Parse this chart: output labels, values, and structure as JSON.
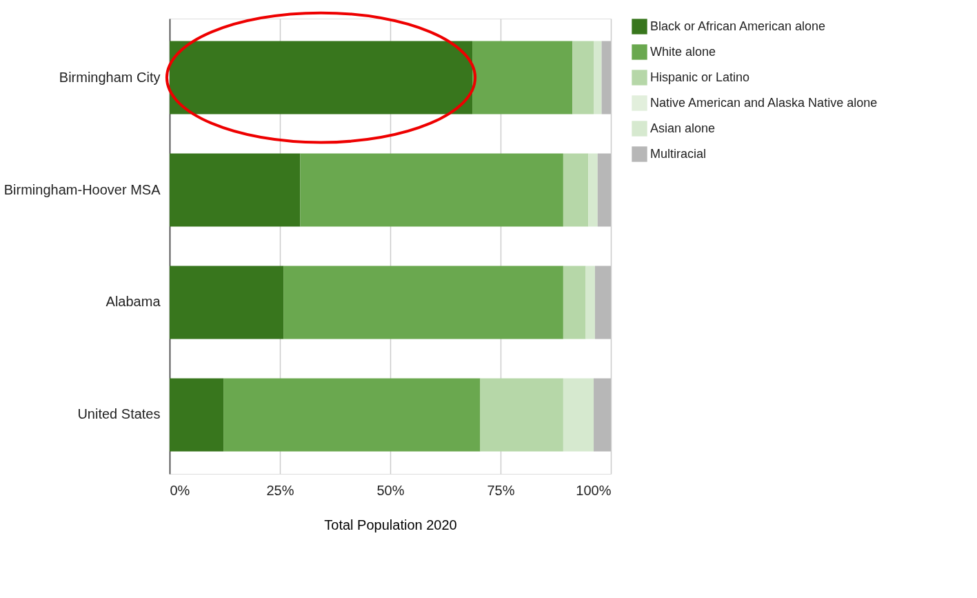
{
  "chart_data": {
    "type": "bar",
    "orientation": "horizontal",
    "stacked": true,
    "xlabel": "Total Population 2020",
    "categories": [
      "Birmingham City",
      "Birmingham-Hoover MSA",
      "Alabama",
      "United States"
    ],
    "series": [
      {
        "name": "Black or African American alone",
        "color": "#38761d",
        "values": [
          68.6,
          29.6,
          25.8,
          12.2
        ]
      },
      {
        "name": "White alone",
        "color": "#6aa84f",
        "values": [
          22.7,
          59.6,
          63.4,
          58.2
        ]
      },
      {
        "name": "Hispanic or Latino",
        "color": "#b6d7a8",
        "values": [
          4.8,
          5.7,
          5.1,
          18.8
        ]
      },
      {
        "name": "Native American and Alaska Native alone",
        "color": "#e2efdc",
        "values": [
          null,
          null,
          null,
          null
        ]
      },
      {
        "name": "Asian alone",
        "color": "#d6e9cf",
        "values": [
          1.8,
          2.1,
          2.1,
          6.9
        ]
      },
      {
        "name": "Multiracial",
        "color": "#b7b7b7",
        "values": [
          2.1,
          3.0,
          3.6,
          3.9
        ]
      }
    ],
    "xlim": [
      0,
      100
    ],
    "xticks": [
      {
        "value": 0,
        "label": "0%"
      },
      {
        "value": 25,
        "label": "25%"
      },
      {
        "value": 50,
        "label": "50%"
      },
      {
        "value": 75,
        "label": "75%"
      },
      {
        "value": 100,
        "label": "100%"
      }
    ],
    "grid": "x",
    "legend": "right"
  }
}
